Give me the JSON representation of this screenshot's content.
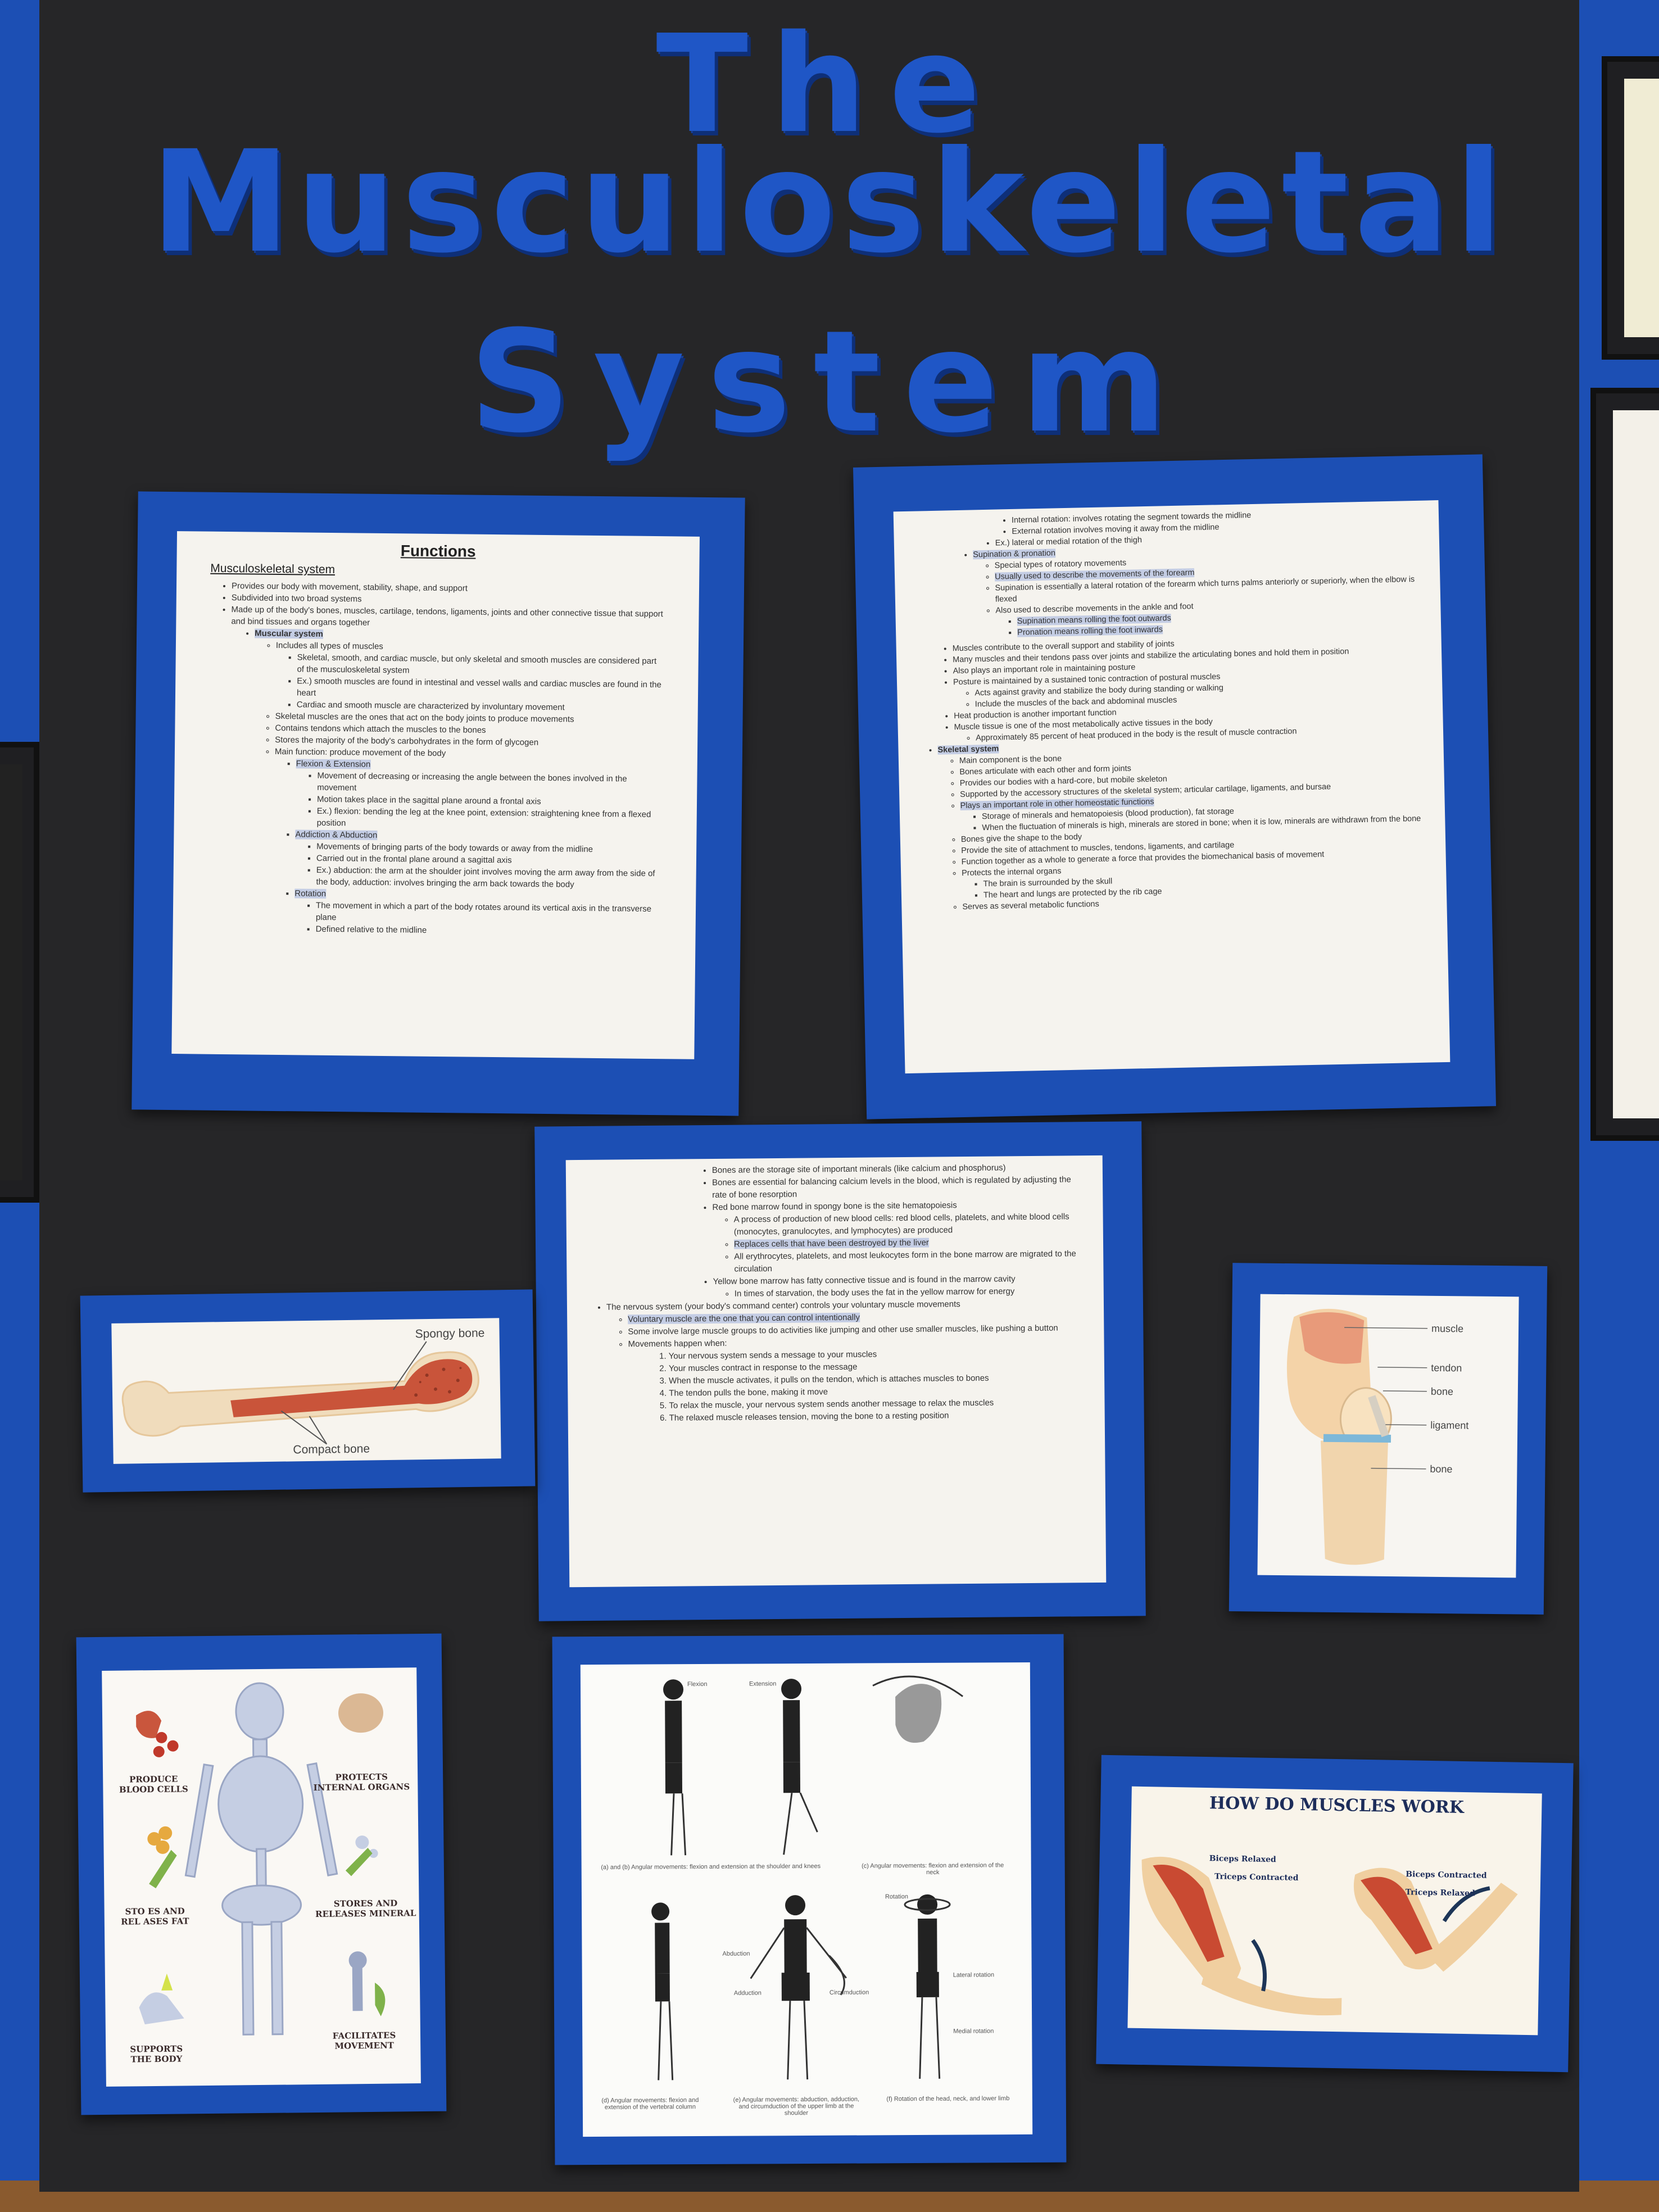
{
  "title": {
    "line1": "The",
    "line2": "Musculoskeletal",
    "line3": "System"
  },
  "functions_page": {
    "heading": "Functions",
    "section": "Musculoskeletal system",
    "b1": "Provides our body with movement, stability, shape, and support",
    "b2": "Subdivided into two broad systems",
    "b3": "Made up of the body's bones, muscles, cartilage, tendons, ligaments, joints and other connective tissue that support and bind tissues and organs together",
    "muscular": "Muscular system",
    "m1": "Includes all types of muscles",
    "m1a": "Skeletal, smooth, and cardiac muscle, but only skeletal and smooth muscles are considered part of the musculoskeletal system",
    "m1b": "Ex.) smooth muscles are found in intestinal and vessel walls and cardiac muscles are found in the heart",
    "m1c": "Cardiac and smooth muscle are characterized by involuntary movement",
    "m2": "Skeletal muscles are the ones that act on the body joints to produce movements",
    "m3": "Contains tendons which attach the muscles to the bones",
    "m4": "Stores the majority of the body's carbohydrates in the form of glycogen",
    "m5": "Main function: produce movement of the body",
    "flex": "Flexion & Extension",
    "flex1": "Movement of decreasing or increasing the angle between the bones involved in the movement",
    "flex2": "Motion takes place in the sagittal plane around a frontal axis",
    "flex3": "Ex.) flexion: bending the leg at the knee point, extension: straightening knee from a flexed position",
    "add": "Addiction & Abduction",
    "add1": "Movements of bringing parts of the body towards or away from the midline",
    "add2": "Carried out in the frontal plane around a sagittal axis",
    "add3": "Ex.) abduction: the arm at the shoulder joint involves moving the arm away from the side of the body, adduction: involves bringing the arm back towards the body",
    "rot": "Rotation",
    "rot1": "The movement in which a part of the body rotates around its vertical axis in the transverse plane",
    "rot2": "Defined relative to the midline"
  },
  "page2": {
    "a1": "Internal rotation: involves rotating the segment towards the midline",
    "a2": "External rotation involves moving it away from the midline",
    "a3": "Ex.) lateral or medial rotation of the thigh",
    "sup": "Supination & pronation",
    "s1": "Special types of rotatory movements",
    "s2": "Usually used to describe the movements of the forearm",
    "s3": "Supination is essentially a lateral rotation of the forearm which turns palms anteriorly or superiorly, when the elbow is flexed",
    "s4": "Also used to describe movements in the ankle and foot",
    "s4a": "Supination means rolling the foot outwards",
    "s4b": "Pronation means rolling the foot inwards",
    "m1": "Muscles contribute to the overall support and stability of joints",
    "m2": "Many muscles and their tendons pass over joints and stabilize the articulating bones and hold them in position",
    "m3": "Also plays an important role in maintaining posture",
    "m4": "Posture is maintained by a sustained tonic contraction of postural muscles",
    "m4a": "Acts against gravity and stabilize the body during standing or walking",
    "m4b": "Include the muscles of the back and abdominal muscles",
    "m5": "Heat production is another important function",
    "m6": "Muscle tissue is one of the most metabolically active tissues in the body",
    "m6a": "Approximately 85 percent of heat produced in the body is the result of muscle contraction",
    "skel": "Skeletal system",
    "k1": "Main component is the bone",
    "k2": "Bones articulate with each other and form joints",
    "k3": "Provides our bodies with a hard-core, but mobile skeleton",
    "k4": "Supported by the accessory structures of the skeletal system; articular cartilage, ligaments, and bursae",
    "k5": "Plays an important role in other homeostatic functions",
    "k5a": "Storage of minerals and hematopoiesis (blood production), fat storage",
    "k5b": "When the fluctuation of minerals is high, minerals are stored in bone; when it is low, minerals are withdrawn from the bone",
    "k6": "Bones give the shape to the body",
    "k7": "Provide the site of attachment to muscles, tendons, ligaments, and cartilage",
    "k8": "Function together as a whole to generate a force that provides the biomechanical basis of movement",
    "k9": "Protects the internal organs",
    "k9a": "The brain is surrounded by the skull",
    "k9b": "The heart and lungs are protected by the rib cage",
    "k10": "Serves as several metabolic functions"
  },
  "page3": {
    "b1": "Bones are the storage site of important minerals (like calcium and phosphorus)",
    "b2": "Bones are essential for balancing calcium levels in the blood, which is regulated by adjusting the rate of bone resorption",
    "b3": "Red bone marrow found in spongy bone is the site hematopoiesis",
    "b3a": "A process of production of new blood cells: red blood cells, platelets, and white blood cells (monocytes, granulocytes, and lymphocytes) are produced",
    "b3b": "Replaces cells that have been destroyed by the liver",
    "b3c": "All erythrocytes, platelets, and most leukocytes form in the bone marrow are migrated to the circulation",
    "b4": "Yellow bone marrow has fatty connective tissue and is found in the marrow cavity",
    "b4a": "In times of starvation, the body uses the fat in the yellow marrow for energy",
    "n1": "The nervous system (your body's command center) controls your voluntary muscle movements",
    "n1a": "Voluntary muscle are the one that you can control intentionally",
    "n1b": "Some involve large muscle groups to do activities like jumping and other use smaller muscles, like pushing a button",
    "n1c": "Movements happen when:",
    "steps": [
      "Your nervous system sends a message to your muscles",
      "Your muscles contract in response to the message",
      "When the muscle activates, it pulls on the tendon, which is attaches muscles to bones",
      "The tendon pulls the bone, making it move",
      "To relax the muscle, your nervous system sends another message to relax the muscles",
      "The relaxed muscle releases tension, moving the bone to a resting position"
    ]
  },
  "bone_diagram": {
    "spongy": "Spongy bone",
    "compact": "Compact bone"
  },
  "knee_diagram": {
    "muscle": "muscle",
    "tendon": "tendon",
    "bone1": "bone",
    "ligament": "ligament",
    "bone2": "bone"
  },
  "skeleton_poster": {
    "produce": "PRODUCE\nBLOOD CELLS",
    "protects": "PROTECTS\nINTERNAL ORGANS",
    "stores_fat": "STO  ES AND\nREL  ASES FAT",
    "stores_min": "STORES AND\nRELEASES MINERAL",
    "supports": "SUPPORTS\nTHE BODY",
    "facilitates": "FACILITATES\nMOVEMENT"
  },
  "movement_sheet": {
    "flexion": "Flexion",
    "extension": "Extension",
    "abduction": "Abduction",
    "adduction": "Adduction",
    "circumduction": "Circumduction",
    "rotation": "Rotation",
    "lateral": "Lateral rotation",
    "medial": "Medial rotation",
    "cap_a": "(a) and (b) Angular movements: flexion and extension at the shoulder and knees",
    "cap_c": "(c) Angular movements: flexion and extension of the neck",
    "cap_d": "(d) Angular movements: flexion and extension of the vertebral column",
    "cap_e": "(e) Angular movements: abduction, adduction, and circumduction of the upper limb at the shoulder",
    "cap_f": "(f) Rotation of the head, neck, and lower limb"
  },
  "muscles_poster": {
    "title": "HOW DO MUSCLES WORK",
    "biceps_relaxed": "Biceps Relaxed",
    "triceps_contracted": "Triceps Contracted",
    "biceps_contracted": "Biceps Contracted",
    "triceps_relaxed": "Triceps Relaxed"
  },
  "colors": {
    "board": "#262628",
    "blue": "#1c4fb4",
    "title_blue": "#1f56c6",
    "highlight": "#c4cde4"
  }
}
